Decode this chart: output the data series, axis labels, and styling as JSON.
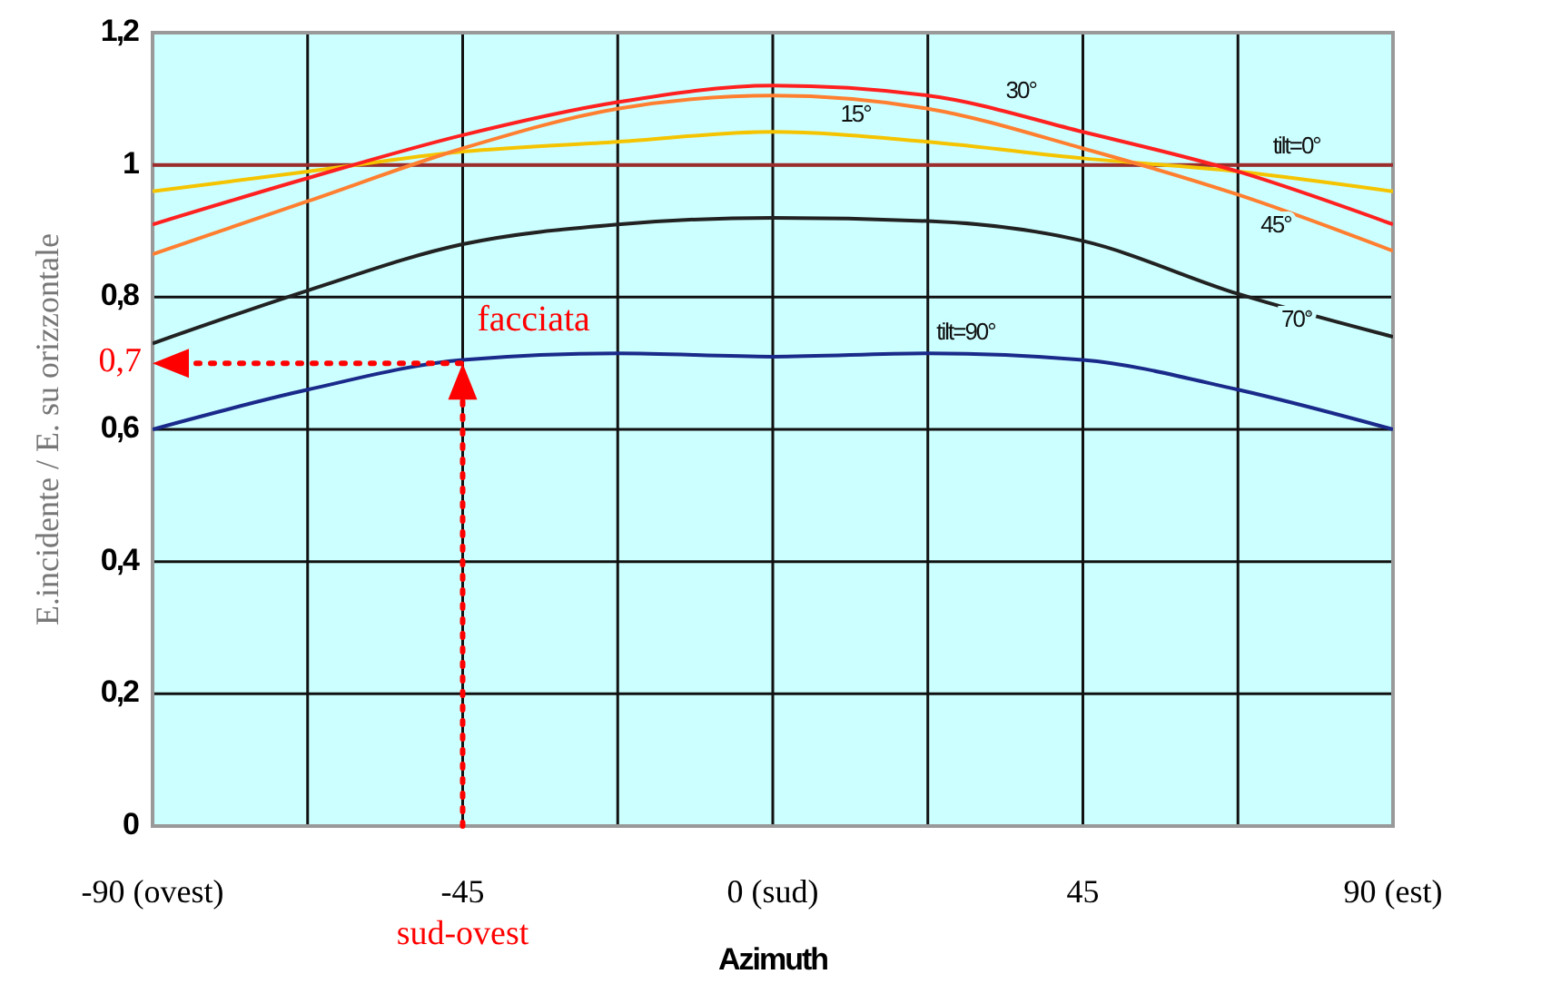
{
  "chart_data": {
    "type": "line",
    "xlabel": "Azimuth",
    "ylabel": "E.incidente / E. su orizzontale",
    "x": [
      -90,
      -67.5,
      -45,
      -22.5,
      0,
      22.5,
      45,
      67.5,
      90
    ],
    "series": [
      {
        "name": "tilt=0°",
        "color": "#9b2d2d",
        "values": [
          1,
          1,
          1,
          1,
          1,
          1,
          1,
          1,
          1
        ]
      },
      {
        "name": "15°",
        "color": "#f5c400",
        "values": [
          0.96,
          0.99,
          1.02,
          1.035,
          1.05,
          1.035,
          1.01,
          0.99,
          0.96
        ]
      },
      {
        "name": "30°",
        "color": "#ff2020",
        "values": [
          0.91,
          0.98,
          1.045,
          1.095,
          1.12,
          1.105,
          1.05,
          0.99,
          0.91
        ]
      },
      {
        "name": "45°",
        "color": "#ff7f30",
        "values": [
          0.865,
          0.945,
          1.025,
          1.085,
          1.105,
          1.085,
          1.025,
          0.955,
          0.87
        ]
      },
      {
        "name": "70°",
        "color": "#222222",
        "values": [
          0.73,
          0.81,
          0.88,
          0.91,
          0.92,
          0.915,
          0.885,
          0.805,
          0.74
        ]
      },
      {
        "name": "tilt=90°",
        "color": "#1a2a8a",
        "values": [
          0.6,
          0.66,
          0.705,
          0.715,
          0.71,
          0.715,
          0.705,
          0.66,
          0.6
        ]
      }
    ],
    "xlim": [
      -90,
      90
    ],
    "xticks": [
      {
        "value": -90,
        "label": "-90 (ovest)"
      },
      {
        "value": -67.5,
        "label": null
      },
      -45,
      {
        "value": -22.5,
        "label": null
      },
      {
        "value": 0,
        "label": "0 (sud)"
      },
      {
        "value": 22.5,
        "label": null
      },
      45,
      {
        "value": 67.5,
        "label": null
      },
      {
        "value": 90,
        "label": "90 (est)"
      }
    ],
    "ylim": [
      0,
      1.2
    ],
    "yticks": [
      0,
      {
        "value": 0.2,
        "label": "0,2"
      },
      {
        "value": 0.4,
        "label": "0,4"
      },
      {
        "value": 0.6,
        "label": "0,6"
      },
      {
        "value": 0.8,
        "label": "0,8"
      },
      {
        "value": 1,
        "label": "1"
      },
      {
        "value": 1.2,
        "label": "1,2"
      }
    ],
    "grid": true,
    "marker": "none",
    "line_style": "solid",
    "ref_lines": [
      {
        "axis": "x",
        "value": -45,
        "label": "sud-ovest",
        "color": "#ff0000",
        "line_style": "dotted"
      },
      {
        "axis": "y",
        "value": 0.7,
        "label": "0,7",
        "color": "#ff0000",
        "line_style": "dotted"
      }
    ],
    "annotations": [
      {
        "text": "facciata",
        "x": -45,
        "y": 0.7
      }
    ]
  }
}
